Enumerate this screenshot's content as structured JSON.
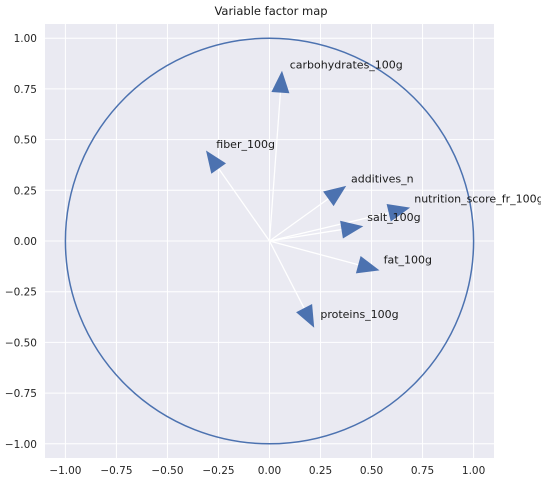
{
  "chart_data": {
    "type": "scatter",
    "title": "Variable factor map",
    "xlabel": "",
    "ylabel": "",
    "xlim": [
      -1.1,
      1.1
    ],
    "ylim": [
      -1.07,
      1.07
    ],
    "xticks": [
      -1.0,
      -0.75,
      -0.5,
      -0.25,
      0.0,
      0.25,
      0.5,
      0.75,
      1.0
    ],
    "xtick_labels": [
      "−1.00",
      "−0.75",
      "−0.50",
      "−0.25",
      "0.00",
      "0.25",
      "0.50",
      "0.75",
      "1.00"
    ],
    "yticks": [
      1.0,
      0.75,
      0.5,
      0.25,
      0.0,
      -0.25,
      -0.5,
      -0.75,
      -1.0
    ],
    "ytick_labels": [
      "1.00",
      "0.75",
      "0.50",
      "0.25",
      "0.00",
      "−0.25",
      "−0.50",
      "−0.75",
      "−1.00"
    ],
    "grid": true,
    "circle_radius": 1.0,
    "variables": [
      {
        "name": "carbohydrates_100g",
        "x": 0.06,
        "y": 0.82
      },
      {
        "name": "fiber_100g",
        "x": -0.3,
        "y": 0.43
      },
      {
        "name": "additives_n",
        "x": 0.36,
        "y": 0.26
      },
      {
        "name": "nutrition_score_fr_100g",
        "x": 0.67,
        "y": 0.16
      },
      {
        "name": "salt_100g",
        "x": 0.44,
        "y": 0.07
      },
      {
        "name": "fat_100g",
        "x": 0.52,
        "y": -0.14
      },
      {
        "name": "proteins_100g",
        "x": 0.21,
        "y": -0.41
      }
    ]
  },
  "colors": {
    "background": "#eaeaf2",
    "grid": "#ffffff",
    "circle": "#4c72b0",
    "arrow_line": "#ffffff",
    "arrow_head": "#4c72b0",
    "text": "#262626"
  }
}
